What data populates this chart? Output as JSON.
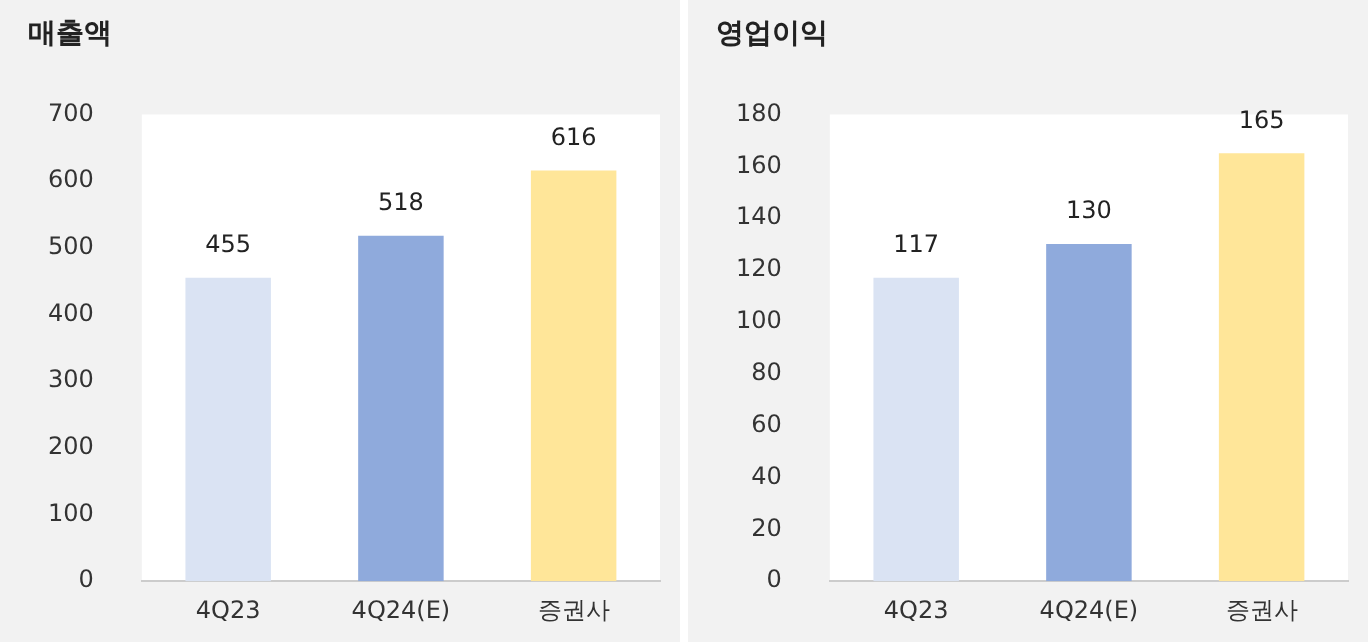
{
  "chart_data": [
    {
      "type": "bar",
      "title": "매출액",
      "categories": [
        "4Q23",
        "4Q24(E)",
        "증권사"
      ],
      "values": [
        455,
        518,
        616
      ],
      "colors": [
        "#dae3f3",
        "#8faadc",
        "#ffe699"
      ],
      "ylim": [
        0,
        700
      ],
      "yticks": [
        0,
        100,
        200,
        300,
        400,
        500,
        600,
        700
      ],
      "data_labels": true
    },
    {
      "type": "bar",
      "title": "영업이익",
      "categories": [
        "4Q23",
        "4Q24(E)",
        "증권사"
      ],
      "values": [
        117,
        130,
        165
      ],
      "colors": [
        "#dae3f3",
        "#8faadc",
        "#ffe699"
      ],
      "ylim": [
        0,
        180
      ],
      "yticks": [
        0,
        20,
        40,
        60,
        80,
        100,
        120,
        140,
        160,
        180
      ],
      "data_labels": true
    }
  ]
}
